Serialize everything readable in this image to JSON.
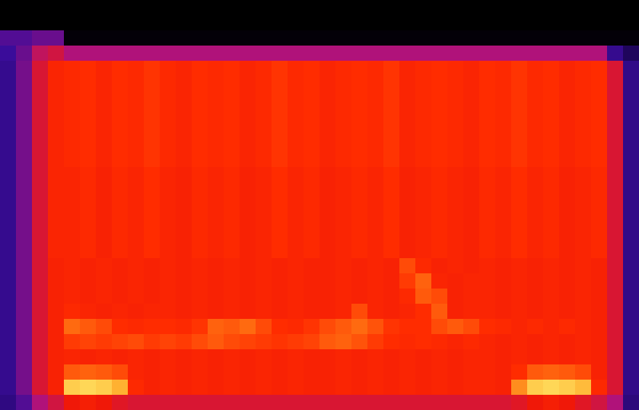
{
  "chart_data": {
    "type": "heatmap",
    "tick_labels": false,
    "zlim": [
      0,
      1
    ],
    "cells": [
      [
        0,
        0,
        0,
        0,
        0,
        0,
        0,
        0,
        0,
        0,
        0,
        0,
        0,
        0,
        0,
        0,
        0,
        0,
        0,
        0,
        0,
        0,
        0,
        0,
        0,
        0,
        0,
        0,
        0,
        0,
        0,
        0,
        0,
        0,
        0,
        0,
        0,
        0,
        0,
        0
      ],
      [
        0,
        0,
        0,
        0,
        0,
        0,
        0,
        0,
        0,
        0,
        0,
        0,
        0,
        0,
        0,
        0,
        0,
        0,
        0,
        0,
        0,
        0,
        0,
        0,
        0,
        0,
        0,
        0,
        0,
        0,
        0,
        0,
        0,
        0,
        0,
        0,
        0,
        0,
        0,
        0
      ],
      [
        0.34,
        0.34,
        0.36,
        0.36,
        0.02,
        0.02,
        0.02,
        0.02,
        0.02,
        0.02,
        0.02,
        0.02,
        0.02,
        0.02,
        0.02,
        0.02,
        0.02,
        0.02,
        0.02,
        0.02,
        0.02,
        0.02,
        0.02,
        0.02,
        0.02,
        0.02,
        0.02,
        0.02,
        0.02,
        0.02,
        0.02,
        0.02,
        0.02,
        0.02,
        0.02,
        0.02,
        0.02,
        0.02,
        0.02,
        0.02
      ],
      [
        0.32,
        0.36,
        0.44,
        0.46,
        0.42,
        0.42,
        0.42,
        0.42,
        0.42,
        0.42,
        0.42,
        0.42,
        0.42,
        0.42,
        0.42,
        0.42,
        0.42,
        0.42,
        0.42,
        0.42,
        0.42,
        0.42,
        0.42,
        0.42,
        0.42,
        0.42,
        0.42,
        0.42,
        0.42,
        0.42,
        0.42,
        0.42,
        0.42,
        0.42,
        0.42,
        0.42,
        0.42,
        0.42,
        0.3,
        0.22
      ],
      [
        0.3,
        0.37,
        0.47,
        0.54,
        0.55,
        0.56,
        0.54,
        0.56,
        0.55,
        0.57,
        0.55,
        0.54,
        0.56,
        0.55,
        0.56,
        0.54,
        0.55,
        0.57,
        0.55,
        0.56,
        0.54,
        0.55,
        0.56,
        0.55,
        0.57,
        0.54,
        0.55,
        0.56,
        0.55,
        0.54,
        0.56,
        0.55,
        0.57,
        0.55,
        0.56,
        0.54,
        0.55,
        0.56,
        0.47,
        0.29
      ],
      [
        0.3,
        0.37,
        0.47,
        0.54,
        0.55,
        0.56,
        0.54,
        0.56,
        0.55,
        0.57,
        0.55,
        0.54,
        0.56,
        0.55,
        0.56,
        0.54,
        0.55,
        0.57,
        0.55,
        0.56,
        0.54,
        0.55,
        0.56,
        0.55,
        0.57,
        0.54,
        0.55,
        0.56,
        0.55,
        0.54,
        0.56,
        0.55,
        0.57,
        0.55,
        0.56,
        0.54,
        0.55,
        0.56,
        0.47,
        0.29
      ],
      [
        0.3,
        0.37,
        0.47,
        0.54,
        0.55,
        0.56,
        0.54,
        0.56,
        0.55,
        0.57,
        0.55,
        0.54,
        0.56,
        0.55,
        0.56,
        0.54,
        0.55,
        0.57,
        0.55,
        0.56,
        0.54,
        0.55,
        0.56,
        0.55,
        0.57,
        0.54,
        0.55,
        0.56,
        0.55,
        0.54,
        0.56,
        0.55,
        0.57,
        0.55,
        0.56,
        0.54,
        0.55,
        0.56,
        0.47,
        0.29
      ],
      [
        0.3,
        0.37,
        0.47,
        0.54,
        0.55,
        0.56,
        0.54,
        0.56,
        0.55,
        0.57,
        0.55,
        0.54,
        0.56,
        0.55,
        0.56,
        0.54,
        0.55,
        0.57,
        0.55,
        0.56,
        0.54,
        0.55,
        0.56,
        0.55,
        0.57,
        0.54,
        0.55,
        0.56,
        0.55,
        0.54,
        0.56,
        0.55,
        0.57,
        0.55,
        0.56,
        0.54,
        0.55,
        0.56,
        0.47,
        0.29
      ],
      [
        0.3,
        0.37,
        0.47,
        0.54,
        0.55,
        0.56,
        0.54,
        0.56,
        0.55,
        0.57,
        0.55,
        0.54,
        0.56,
        0.55,
        0.56,
        0.54,
        0.55,
        0.57,
        0.55,
        0.56,
        0.54,
        0.55,
        0.56,
        0.55,
        0.57,
        0.54,
        0.55,
        0.56,
        0.55,
        0.54,
        0.56,
        0.55,
        0.57,
        0.55,
        0.56,
        0.54,
        0.55,
        0.56,
        0.47,
        0.29
      ],
      [
        0.3,
        0.37,
        0.47,
        0.54,
        0.55,
        0.56,
        0.54,
        0.56,
        0.55,
        0.57,
        0.55,
        0.54,
        0.56,
        0.55,
        0.56,
        0.54,
        0.55,
        0.57,
        0.55,
        0.56,
        0.54,
        0.55,
        0.56,
        0.55,
        0.57,
        0.54,
        0.55,
        0.56,
        0.55,
        0.54,
        0.56,
        0.55,
        0.57,
        0.55,
        0.56,
        0.54,
        0.55,
        0.56,
        0.47,
        0.29
      ],
      [
        0.3,
        0.37,
        0.47,
        0.54,
        0.55,
        0.56,
        0.54,
        0.56,
        0.55,
        0.57,
        0.55,
        0.54,
        0.56,
        0.55,
        0.56,
        0.54,
        0.55,
        0.57,
        0.55,
        0.56,
        0.54,
        0.55,
        0.56,
        0.55,
        0.57,
        0.54,
        0.55,
        0.56,
        0.55,
        0.54,
        0.56,
        0.55,
        0.57,
        0.55,
        0.56,
        0.54,
        0.55,
        0.56,
        0.47,
        0.29
      ],
      [
        0.3,
        0.37,
        0.47,
        0.54,
        0.54,
        0.55,
        0.53,
        0.55,
        0.54,
        0.56,
        0.54,
        0.53,
        0.55,
        0.54,
        0.55,
        0.53,
        0.54,
        0.56,
        0.54,
        0.55,
        0.53,
        0.54,
        0.55,
        0.54,
        0.56,
        0.53,
        0.54,
        0.55,
        0.54,
        0.53,
        0.55,
        0.54,
        0.56,
        0.54,
        0.55,
        0.53,
        0.54,
        0.55,
        0.47,
        0.29
      ],
      [
        0.3,
        0.37,
        0.47,
        0.54,
        0.54,
        0.55,
        0.53,
        0.55,
        0.54,
        0.56,
        0.54,
        0.53,
        0.55,
        0.54,
        0.55,
        0.53,
        0.54,
        0.56,
        0.54,
        0.55,
        0.53,
        0.54,
        0.55,
        0.54,
        0.56,
        0.53,
        0.54,
        0.55,
        0.54,
        0.53,
        0.55,
        0.54,
        0.56,
        0.54,
        0.55,
        0.53,
        0.54,
        0.55,
        0.47,
        0.29
      ],
      [
        0.3,
        0.37,
        0.47,
        0.54,
        0.54,
        0.55,
        0.53,
        0.55,
        0.54,
        0.56,
        0.54,
        0.53,
        0.55,
        0.54,
        0.55,
        0.53,
        0.54,
        0.56,
        0.54,
        0.55,
        0.53,
        0.54,
        0.55,
        0.54,
        0.56,
        0.53,
        0.54,
        0.55,
        0.54,
        0.53,
        0.55,
        0.54,
        0.56,
        0.54,
        0.55,
        0.53,
        0.54,
        0.55,
        0.47,
        0.29
      ],
      [
        0.3,
        0.37,
        0.47,
        0.54,
        0.54,
        0.55,
        0.53,
        0.55,
        0.54,
        0.56,
        0.54,
        0.53,
        0.55,
        0.54,
        0.55,
        0.53,
        0.54,
        0.56,
        0.54,
        0.55,
        0.53,
        0.54,
        0.55,
        0.54,
        0.56,
        0.53,
        0.54,
        0.55,
        0.54,
        0.53,
        0.55,
        0.54,
        0.56,
        0.54,
        0.55,
        0.53,
        0.54,
        0.55,
        0.47,
        0.29
      ],
      [
        0.3,
        0.37,
        0.47,
        0.54,
        0.54,
        0.55,
        0.53,
        0.55,
        0.54,
        0.56,
        0.54,
        0.53,
        0.55,
        0.54,
        0.55,
        0.53,
        0.54,
        0.56,
        0.54,
        0.55,
        0.53,
        0.54,
        0.55,
        0.54,
        0.56,
        0.53,
        0.54,
        0.55,
        0.54,
        0.53,
        0.55,
        0.54,
        0.56,
        0.54,
        0.55,
        0.53,
        0.54,
        0.55,
        0.47,
        0.29
      ],
      [
        0.3,
        0.37,
        0.47,
        0.54,
        0.54,
        0.55,
        0.53,
        0.55,
        0.54,
        0.56,
        0.54,
        0.53,
        0.55,
        0.54,
        0.55,
        0.53,
        0.54,
        0.56,
        0.54,
        0.55,
        0.53,
        0.54,
        0.55,
        0.54,
        0.56,
        0.53,
        0.54,
        0.55,
        0.54,
        0.53,
        0.55,
        0.54,
        0.56,
        0.54,
        0.55,
        0.53,
        0.54,
        0.55,
        0.47,
        0.29
      ],
      [
        0.3,
        0.37,
        0.47,
        0.53,
        0.54,
        0.53,
        0.54,
        0.53,
        0.54,
        0.53,
        0.54,
        0.53,
        0.54,
        0.53,
        0.54,
        0.53,
        0.54,
        0.53,
        0.54,
        0.53,
        0.53,
        0.54,
        0.53,
        0.54,
        0.53,
        0.6,
        0.55,
        0.53,
        0.54,
        0.53,
        0.54,
        0.53,
        0.54,
        0.53,
        0.54,
        0.53,
        0.54,
        0.53,
        0.47,
        0.29
      ],
      [
        0.3,
        0.37,
        0.47,
        0.53,
        0.54,
        0.53,
        0.54,
        0.53,
        0.54,
        0.53,
        0.54,
        0.53,
        0.54,
        0.53,
        0.54,
        0.53,
        0.54,
        0.53,
        0.54,
        0.53,
        0.53,
        0.54,
        0.53,
        0.54,
        0.53,
        0.58,
        0.63,
        0.54,
        0.53,
        0.54,
        0.54,
        0.53,
        0.54,
        0.53,
        0.54,
        0.53,
        0.54,
        0.53,
        0.47,
        0.29
      ],
      [
        0.3,
        0.37,
        0.47,
        0.53,
        0.54,
        0.53,
        0.54,
        0.53,
        0.54,
        0.53,
        0.54,
        0.53,
        0.54,
        0.53,
        0.54,
        0.53,
        0.54,
        0.53,
        0.54,
        0.53,
        0.53,
        0.54,
        0.53,
        0.54,
        0.53,
        0.55,
        0.62,
        0.6,
        0.53,
        0.54,
        0.54,
        0.53,
        0.54,
        0.53,
        0.54,
        0.53,
        0.54,
        0.53,
        0.47,
        0.29
      ],
      [
        0.3,
        0.37,
        0.47,
        0.53,
        0.55,
        0.54,
        0.53,
        0.54,
        0.53,
        0.54,
        0.54,
        0.53,
        0.54,
        0.53,
        0.54,
        0.53,
        0.54,
        0.53,
        0.54,
        0.53,
        0.53,
        0.54,
        0.6,
        0.54,
        0.53,
        0.54,
        0.56,
        0.62,
        0.53,
        0.54,
        0.54,
        0.53,
        0.54,
        0.53,
        0.54,
        0.53,
        0.54,
        0.53,
        0.47,
        0.29
      ],
      [
        0.3,
        0.37,
        0.47,
        0.53,
        0.64,
        0.62,
        0.6,
        0.56,
        0.55,
        0.56,
        0.56,
        0.55,
        0.57,
        0.63,
        0.62,
        0.64,
        0.6,
        0.56,
        0.55,
        0.57,
        0.6,
        0.62,
        0.64,
        0.61,
        0.57,
        0.56,
        0.56,
        0.6,
        0.62,
        0.6,
        0.56,
        0.55,
        0.54,
        0.55,
        0.54,
        0.55,
        0.54,
        0.53,
        0.47,
        0.29
      ],
      [
        0.3,
        0.37,
        0.47,
        0.53,
        0.58,
        0.59,
        0.58,
        0.59,
        0.6,
        0.58,
        0.59,
        0.58,
        0.6,
        0.62,
        0.6,
        0.59,
        0.58,
        0.57,
        0.58,
        0.59,
        0.62,
        0.63,
        0.61,
        0.58,
        0.56,
        0.55,
        0.56,
        0.55,
        0.54,
        0.55,
        0.54,
        0.53,
        0.54,
        0.53,
        0.54,
        0.53,
        0.54,
        0.53,
        0.47,
        0.29
      ],
      [
        0.3,
        0.37,
        0.47,
        0.53,
        0.54,
        0.53,
        0.54,
        0.53,
        0.54,
        0.53,
        0.54,
        0.53,
        0.54,
        0.53,
        0.54,
        0.53,
        0.54,
        0.53,
        0.54,
        0.53,
        0.53,
        0.54,
        0.53,
        0.54,
        0.53,
        0.54,
        0.53,
        0.54,
        0.53,
        0.54,
        0.54,
        0.53,
        0.54,
        0.53,
        0.54,
        0.53,
        0.54,
        0.53,
        0.47,
        0.29
      ],
      [
        0.3,
        0.37,
        0.47,
        0.53,
        0.62,
        0.63,
        0.62,
        0.6,
        0.54,
        0.53,
        0.54,
        0.53,
        0.54,
        0.53,
        0.54,
        0.53,
        0.54,
        0.53,
        0.54,
        0.53,
        0.53,
        0.54,
        0.53,
        0.54,
        0.53,
        0.54,
        0.53,
        0.54,
        0.53,
        0.54,
        0.54,
        0.53,
        0.56,
        0.62,
        0.63,
        0.62,
        0.6,
        0.53,
        0.47,
        0.29
      ],
      [
        0.3,
        0.37,
        0.47,
        0.53,
        0.86,
        0.88,
        0.86,
        0.8,
        0.55,
        0.53,
        0.54,
        0.53,
        0.54,
        0.53,
        0.54,
        0.53,
        0.54,
        0.53,
        0.54,
        0.53,
        0.53,
        0.54,
        0.53,
        0.54,
        0.53,
        0.54,
        0.53,
        0.54,
        0.53,
        0.54,
        0.54,
        0.53,
        0.72,
        0.86,
        0.88,
        0.86,
        0.82,
        0.55,
        0.47,
        0.29
      ],
      [
        0.28,
        0.34,
        0.42,
        0.46,
        0.5,
        0.52,
        0.5,
        0.48,
        0.47,
        0.47,
        0.47,
        0.47,
        0.47,
        0.47,
        0.47,
        0.47,
        0.47,
        0.47,
        0.47,
        0.47,
        0.47,
        0.47,
        0.47,
        0.47,
        0.47,
        0.47,
        0.47,
        0.47,
        0.47,
        0.47,
        0.47,
        0.47,
        0.48,
        0.5,
        0.52,
        0.5,
        0.48,
        0.46,
        0.42,
        0.27
      ]
    ]
  }
}
